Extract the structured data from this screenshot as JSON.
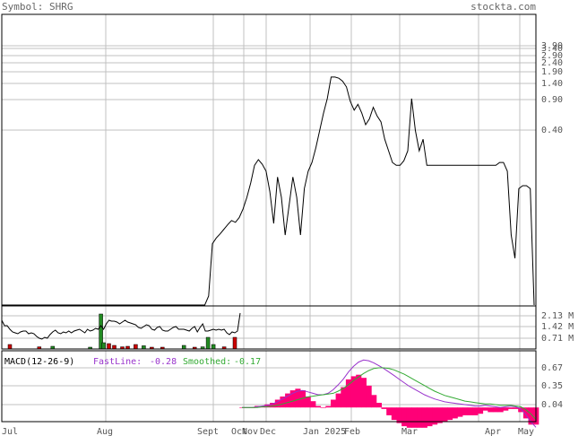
{
  "header": {
    "symbol_label": "Symbol: SHRG",
    "brand": "stockta.com"
  },
  "colors": {
    "price_line": "#000000",
    "grid": "#c0c0c0",
    "volume_up": "#228b22",
    "volume_down": "#cc0000",
    "fast_line": "#9933cc",
    "smoothed_line": "#33aa33",
    "histogram": "#ff0077",
    "frame": "#000000",
    "label": "#555555"
  },
  "chart_data": [
    {
      "type": "line",
      "title": "",
      "price_axis_ticks": [
        "3.90",
        "3.40",
        "2.90",
        "2.40",
        "1.90",
        "1.40",
        "0.90",
        "0.40"
      ],
      "ylim": [
        -1.12,
        3.9
      ],
      "x_labels": [
        "Jul",
        "Aug",
        "Sept",
        "Oct",
        "Nov",
        "Dec",
        "Jan 2025",
        "Feb",
        "Mar",
        "Apr",
        "May"
      ],
      "series": [
        {
          "values": [
            -1.2,
            -1.2,
            -1.2,
            -1.2,
            -1.2,
            -1.2,
            -1.2,
            -1.2,
            -1.2,
            -1.2,
            -1.2,
            -1.2,
            -1.2,
            -1.2,
            -1.2,
            -1.2,
            -1.2,
            -1.2,
            -1.2,
            -1.2,
            -1.2,
            -1.2,
            -1.2,
            -1.2,
            -1.2,
            -1.2,
            -1.2,
            -1.2,
            -1.2,
            -1.2,
            -1.2,
            -1.2,
            -1.2,
            -1.2,
            -1.2,
            -1.2,
            -1.2,
            -1.2,
            -1.2,
            -1.2,
            -1.2,
            -1.2,
            -1.2,
            -1.2,
            -1.2,
            -1.2,
            -1.2,
            -1.2,
            -1.2,
            -1.2,
            -1.2,
            -1.2,
            -1.2,
            -1.2,
            -0.95,
            -0.05,
            0.05,
            0.12,
            0.2,
            0.28,
            0.35,
            0.32,
            0.4,
            0.55,
            0.75,
            1.0,
            1.3,
            1.4,
            1.32,
            1.2,
            0.85,
            0.3,
            1.1,
            0.75,
            0.1,
            0.6,
            1.1,
            0.75,
            0.1,
            0.9,
            1.2,
            1.35,
            1.6,
            1.9,
            2.2,
            2.45,
            2.82,
            2.82,
            2.8,
            2.75,
            2.65,
            2.4,
            2.25,
            2.35,
            2.2,
            2.0,
            2.1,
            2.3,
            2.15,
            2.05,
            1.75,
            1.55,
            1.35,
            1.3,
            1.3,
            1.38,
            1.55,
            2.45,
            1.9,
            1.55,
            1.75,
            1.3,
            1.3,
            1.3,
            1.3,
            1.3,
            1.3,
            1.3,
            1.3,
            1.3,
            1.3,
            1.3,
            1.3,
            1.3,
            1.3,
            1.3,
            1.3,
            1.3,
            1.3,
            1.3,
            1.35,
            1.35,
            1.2,
            0.1,
            -0.3,
            0.9,
            0.95,
            0.95,
            0.9,
            -1.12
          ]
        }
      ]
    },
    {
      "type": "bar",
      "title": "",
      "volume_axis_ticks": [
        "2.13 M",
        "1.42 M",
        "0.71 M"
      ],
      "ylim": [
        0,
        2.4
      ],
      "bars": [
        {
          "day": 3,
          "value": 0.25,
          "dir": "down"
        },
        {
          "day": 14,
          "value": 0.12,
          "dir": "down"
        },
        {
          "day": 19,
          "value": 0.15,
          "dir": "up"
        },
        {
          "day": 33,
          "value": 0.1,
          "dir": "up"
        },
        {
          "day": 37,
          "value": 1.95,
          "dir": "up"
        },
        {
          "day": 38,
          "value": 0.35,
          "dir": "up"
        },
        {
          "day": 40,
          "value": 0.3,
          "dir": "down"
        },
        {
          "day": 42,
          "value": 0.2,
          "dir": "down"
        },
        {
          "day": 45,
          "value": 0.12,
          "dir": "down"
        },
        {
          "day": 47,
          "value": 0.15,
          "dir": "down"
        },
        {
          "day": 50,
          "value": 0.25,
          "dir": "down"
        },
        {
          "day": 53,
          "value": 0.18,
          "dir": "up"
        },
        {
          "day": 56,
          "value": 0.1,
          "dir": "down"
        },
        {
          "day": 60,
          "value": 0.1,
          "dir": "down"
        },
        {
          "day": 68,
          "value": 0.2,
          "dir": "up"
        },
        {
          "day": 72,
          "value": 0.1,
          "dir": "down"
        },
        {
          "day": 75,
          "value": 0.12,
          "dir": "up"
        },
        {
          "day": 77,
          "value": 0.65,
          "dir": "up"
        },
        {
          "day": 79,
          "value": 0.25,
          "dir": "up"
        },
        {
          "day": 83,
          "value": 0.12,
          "dir": "down"
        },
        {
          "day": 87,
          "value": 0.65,
          "dir": "down"
        }
      ],
      "overlay": [
        1.6,
        1.3,
        1.3,
        1.1,
        0.95,
        0.9,
        0.85,
        0.95,
        1.0,
        1.0,
        0.85,
        0.9,
        0.85,
        0.7,
        0.6,
        0.55,
        0.65,
        0.6,
        0.8,
        0.95,
        1.05,
        0.9,
        0.85,
        0.95,
        0.9,
        1.0,
        0.9,
        1.0,
        1.05,
        1.1,
        1.0,
        0.9,
        1.1,
        1.0,
        1.05,
        1.15,
        1.1,
        1.3,
        1.1,
        1.4,
        1.6,
        1.55,
        1.55,
        1.5,
        1.4,
        1.5,
        1.6,
        1.5,
        1.45,
        1.4,
        1.35,
        1.2,
        1.15,
        1.25,
        1.35,
        1.3,
        1.1,
        1.05,
        1.2,
        1.25,
        1.05,
        1.0,
        1.0,
        1.1,
        1.2,
        1.25,
        1.1,
        1.1,
        1.1,
        1.05,
        1.0,
        1.15,
        1.25,
        0.95,
        1.2,
        1.4,
        1.0,
        1.0,
        1.05,
        1.1,
        1.05,
        1.1,
        1.05,
        1.1,
        0.9,
        0.8,
        0.95,
        0.9,
        1.0,
        2.0
      ]
    },
    {
      "type": "line",
      "title": "MACD(12-26-9)",
      "legend": [
        {
          "label": "FastLine:",
          "value": "-0.28"
        },
        {
          "label": "Smoothed:",
          "value": "-0.17"
        }
      ],
      "macd_axis_ticks": [
        "0.67",
        "0.35",
        "0.04"
      ],
      "ylim": [
        -0.2,
        0.8
      ],
      "series": [
        {
          "name": "FastLine",
          "values": [
            0.0,
            0.0,
            0.0,
            0.01,
            0.02,
            0.03,
            0.05,
            0.08,
            0.12,
            0.16,
            0.2,
            0.23,
            0.24,
            0.22,
            0.2,
            0.18,
            0.18,
            0.2,
            0.25,
            0.32,
            0.4,
            0.5,
            0.58,
            0.64,
            0.67,
            0.66,
            0.63,
            0.59,
            0.55,
            0.5,
            0.45,
            0.4,
            0.35,
            0.3,
            0.26,
            0.22,
            0.18,
            0.15,
            0.12,
            0.1,
            0.08,
            0.07,
            0.06,
            0.05,
            0.04,
            0.03,
            0.02,
            0.02,
            0.03,
            0.02,
            0.01,
            0.0,
            0.01,
            0.02,
            0.01,
            -0.02,
            -0.1,
            -0.2,
            -0.28
          ]
        },
        {
          "name": "Smoothed",
          "values": [
            0.0,
            0.0,
            0.0,
            0.0,
            0.01,
            0.01,
            0.02,
            0.03,
            0.05,
            0.07,
            0.09,
            0.11,
            0.13,
            0.15,
            0.16,
            0.17,
            0.18,
            0.19,
            0.2,
            0.23,
            0.27,
            0.32,
            0.38,
            0.43,
            0.48,
            0.52,
            0.55,
            0.56,
            0.56,
            0.55,
            0.53,
            0.5,
            0.47,
            0.43,
            0.39,
            0.35,
            0.31,
            0.27,
            0.23,
            0.2,
            0.17,
            0.15,
            0.13,
            0.11,
            0.09,
            0.08,
            0.07,
            0.06,
            0.05,
            0.05,
            0.04,
            0.03,
            0.03,
            0.03,
            0.02,
            0.01,
            -0.03,
            -0.09,
            -0.17
          ]
        }
      ]
    }
  ]
}
